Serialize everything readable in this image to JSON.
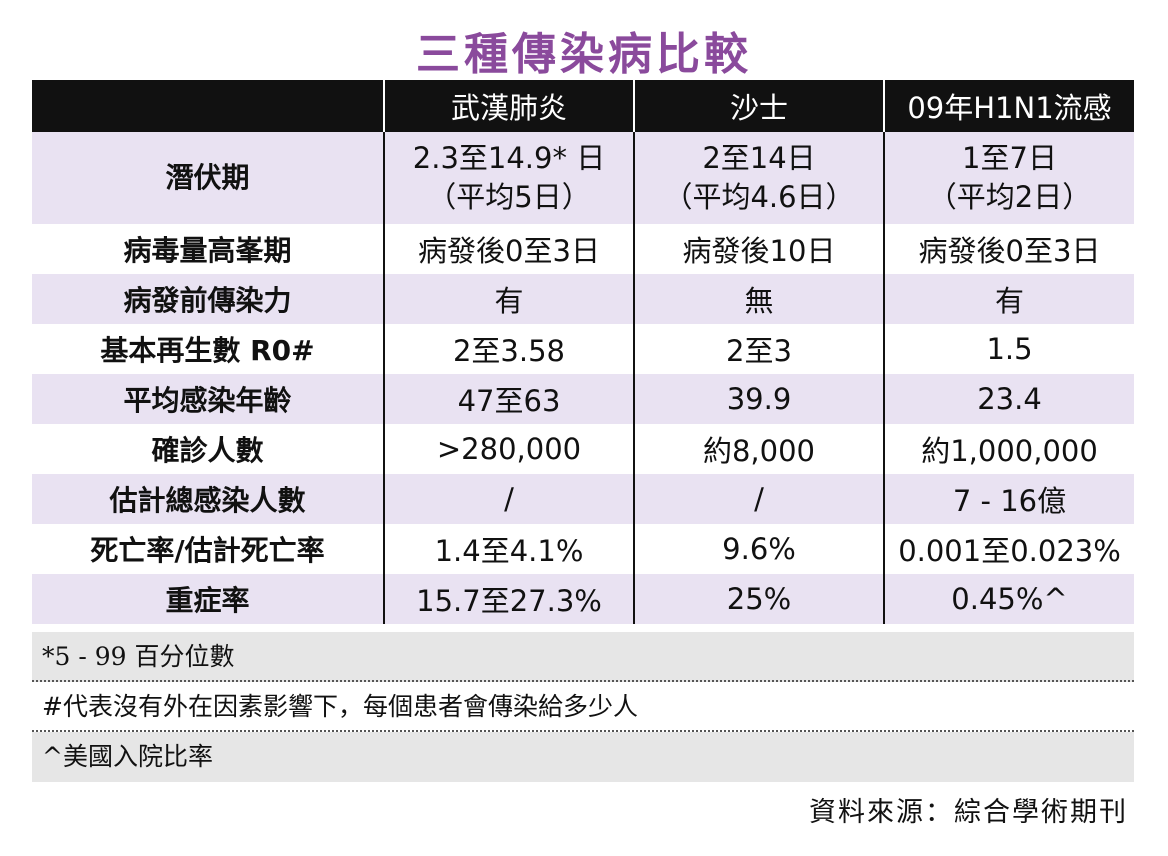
{
  "title": "三種傳染病比較",
  "table": {
    "headers": [
      "",
      "武漢肺炎",
      "沙士",
      "09年H1N1流感"
    ],
    "rows": [
      {
        "label": "潛伏期",
        "values": [
          [
            "2.3至14.9* 日",
            "（平均5日）"
          ],
          [
            "2至14日",
            "（平均4.6日）"
          ],
          [
            "1至7日",
            "（平均2日）"
          ]
        ]
      },
      {
        "label": "病毒量高峯期",
        "values": [
          [
            "病發後0至3日"
          ],
          [
            "病發後10日"
          ],
          [
            "病發後0至3日"
          ]
        ]
      },
      {
        "label": "病發前傳染力",
        "values": [
          [
            "有"
          ],
          [
            "無"
          ],
          [
            "有"
          ]
        ]
      },
      {
        "label": "基本再生數 R0#",
        "values": [
          [
            "2至3.58"
          ],
          [
            "2至3"
          ],
          [
            "1.5"
          ]
        ]
      },
      {
        "label": "平均感染年齡",
        "values": [
          [
            "47至63"
          ],
          [
            "39.9"
          ],
          [
            "23.4"
          ]
        ]
      },
      {
        "label": "確診人數",
        "values": [
          [
            ">280,000"
          ],
          [
            "約8,000"
          ],
          [
            "約1,000,000"
          ]
        ]
      },
      {
        "label": "估計總感染人數",
        "values": [
          [
            "/"
          ],
          [
            "/"
          ],
          [
            "7 - 16億"
          ]
        ]
      },
      {
        "label": "死亡率/估計死亡率",
        "values": [
          [
            "1.4至4.1%"
          ],
          [
            "9.6%"
          ],
          [
            "0.001至0.023%"
          ]
        ]
      },
      {
        "label": "重症率",
        "values": [
          [
            "15.7至27.3%"
          ],
          [
            "25%"
          ],
          [
            "0.45%^"
          ]
        ]
      }
    ]
  },
  "notes": [
    "*5 - 99 百分位數",
    "#代表沒有外在因素影響下，每個患者會傳染給多少人",
    "^美國入院比率"
  ],
  "source": "資料來源：綜合學術期刊",
  "colors": {
    "title": "#8a4a9c",
    "header_bg": "#111111",
    "row_shade": "#e9e2f2",
    "note_shade": "#e6e6e6"
  }
}
